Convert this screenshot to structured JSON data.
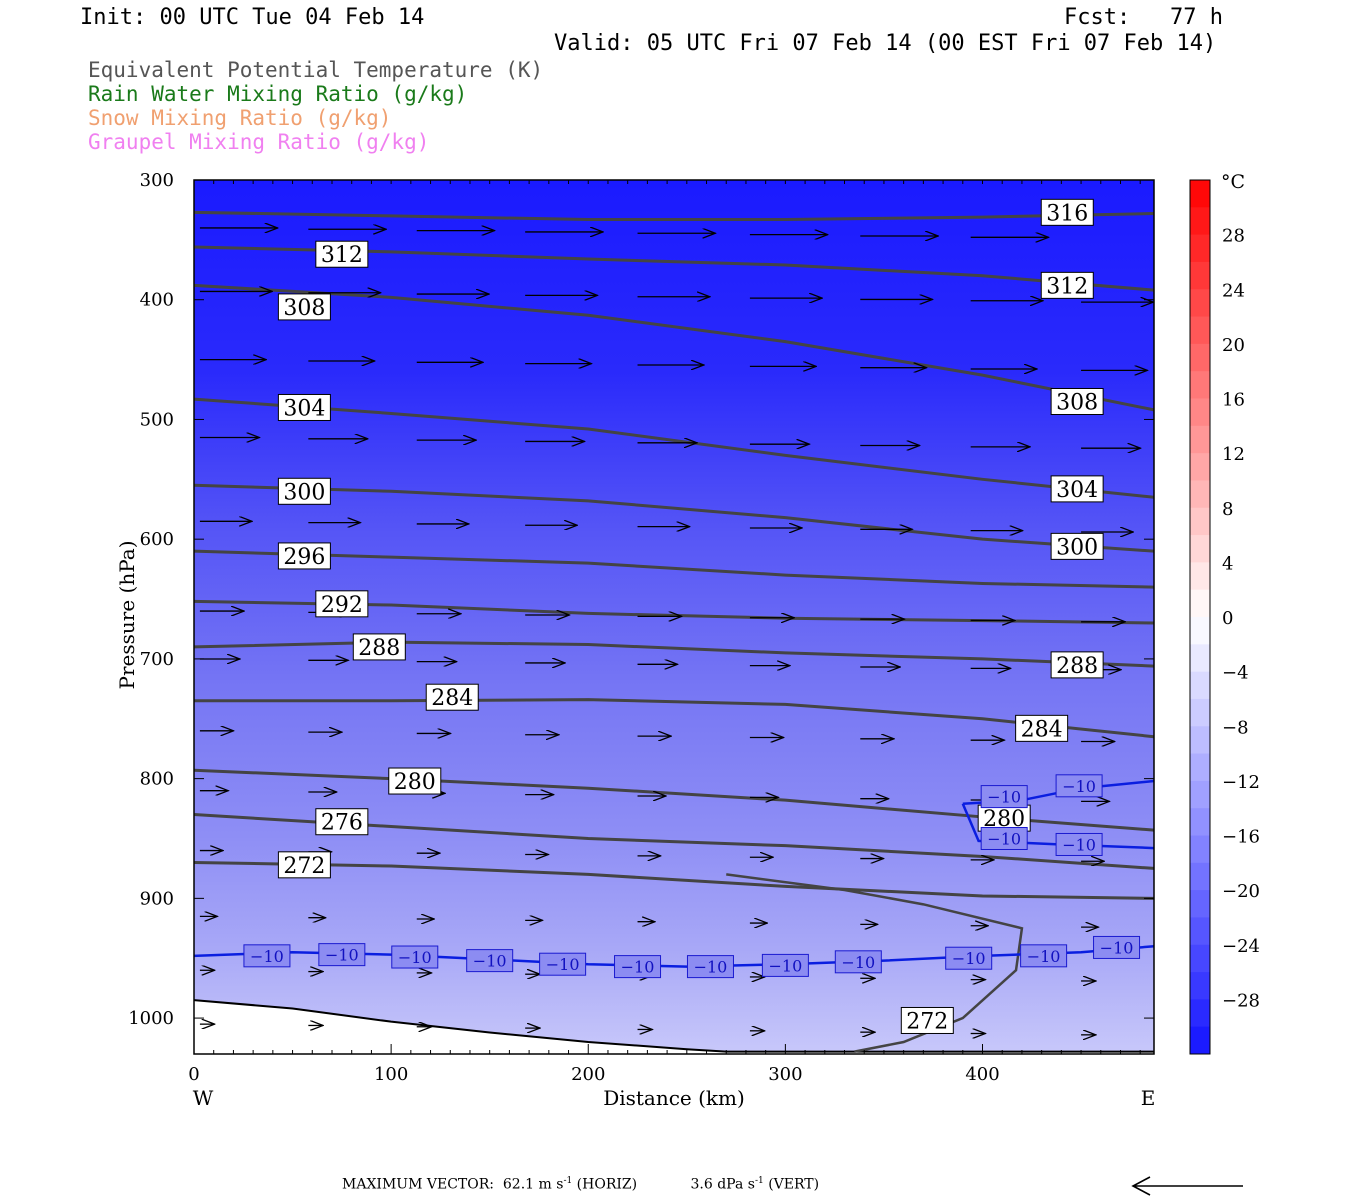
{
  "header": {
    "init": "Init: 00 UTC Tue 04 Feb 14",
    "fcst": "Fcst:   77 h",
    "valid": "Valid: 05 UTC Fri 07 Feb 14 (00 EST Fri 07 Feb 14)"
  },
  "legend": [
    {
      "label": "Equivalent Potential Temperature (K)",
      "color": "#555555"
    },
    {
      "label": "Rain Water Mixing Ratio (g/kg)",
      "color": "#1a7a1a"
    },
    {
      "label": "Snow Mixing Ratio (g/kg)",
      "color": "#f0a070"
    },
    {
      "label": "Graupel Mixing Ratio (g/kg)",
      "color": "#f080f0"
    }
  ],
  "footer": {
    "max_vector_label": "MAXIMUM VECTOR:",
    "horiz_value": "62.1 m s",
    "horiz_unit": "(HORIZ)",
    "vert_value": "3.6 dPa s",
    "vert_unit": "(VERT)",
    "exponent": "-1"
  },
  "chart_data": {
    "type": "cross-section",
    "xlabel": "Distance (km)",
    "ylabel": "Pressure (hPa)",
    "x_ticks": [
      0,
      100,
      200,
      300,
      400
    ],
    "y_ticks": [
      300,
      400,
      500,
      600,
      700,
      800,
      900,
      1000
    ],
    "xlim": [
      0,
      487
    ],
    "ylim": [
      300,
      1030
    ],
    "x_end_labels": {
      "west": "W",
      "east": "E"
    },
    "colorbar": {
      "unit": "°C",
      "tick_labels": [
        "28",
        "24",
        "20",
        "16",
        "12",
        "8",
        "4",
        "0",
        "−4",
        "−8",
        "−12",
        "−16",
        "−20",
        "−24",
        "−28"
      ],
      "tick_values": [
        28,
        24,
        20,
        16,
        12,
        8,
        4,
        0,
        -4,
        -8,
        -12,
        -16,
        -20,
        -24,
        -28
      ],
      "range": [
        -32,
        32
      ]
    },
    "theta_e_contours": [
      {
        "value": 316,
        "label": "316",
        "label_at": [
          443,
          327
        ],
        "points": [
          [
            0,
            327
          ],
          [
            100,
            330
          ],
          [
            200,
            333
          ],
          [
            300,
            333
          ],
          [
            400,
            331
          ],
          [
            487,
            328
          ]
        ]
      },
      {
        "value": 312,
        "label": "312",
        "label_at": [
          75,
          362
        ],
        "points": [
          [
            0,
            356
          ],
          [
            100,
            360
          ],
          [
            200,
            366
          ],
          [
            300,
            371
          ],
          [
            400,
            380
          ],
          [
            487,
            392
          ]
        ]
      },
      {
        "value": 312,
        "label": "312",
        "label_at": [
          443,
          388
        ],
        "points": []
      },
      {
        "value": 308,
        "label": "308",
        "label_at": [
          56,
          406
        ],
        "points": [
          [
            0,
            388
          ],
          [
            100,
            398
          ],
          [
            200,
            413
          ],
          [
            300,
            435
          ],
          [
            400,
            463
          ],
          [
            487,
            492
          ]
        ]
      },
      {
        "value": 308,
        "label": "308",
        "label_at": [
          448,
          485
        ],
        "points": []
      },
      {
        "value": 304,
        "label": "304",
        "label_at": [
          56,
          490
        ],
        "points": [
          [
            0,
            483
          ],
          [
            100,
            495
          ],
          [
            200,
            508
          ],
          [
            300,
            530
          ],
          [
            400,
            550
          ],
          [
            487,
            565
          ]
        ]
      },
      {
        "value": 304,
        "label": "304",
        "label_at": [
          448,
          558
        ],
        "points": []
      },
      {
        "value": 300,
        "label": "300",
        "label_at": [
          56,
          560
        ],
        "points": [
          [
            0,
            555
          ],
          [
            100,
            560
          ],
          [
            200,
            568
          ],
          [
            300,
            582
          ],
          [
            400,
            600
          ],
          [
            487,
            610
          ]
        ]
      },
      {
        "value": 300,
        "label": "300",
        "label_at": [
          448,
          606
        ],
        "points": []
      },
      {
        "value": 296,
        "label": "296",
        "label_at": [
          56,
          614
        ],
        "points": [
          [
            0,
            610
          ],
          [
            100,
            615
          ],
          [
            200,
            620
          ],
          [
            300,
            630
          ],
          [
            400,
            637
          ],
          [
            487,
            640
          ]
        ]
      },
      {
        "value": 292,
        "label": "292",
        "label_at": [
          75,
          654
        ],
        "points": [
          [
            0,
            652
          ],
          [
            100,
            655
          ],
          [
            200,
            662
          ],
          [
            300,
            666
          ],
          [
            400,
            668
          ],
          [
            487,
            670
          ]
        ]
      },
      {
        "value": 288,
        "label": "288",
        "label_at": [
          94,
          690
        ],
        "points": [
          [
            0,
            690
          ],
          [
            100,
            686
          ],
          [
            200,
            688
          ],
          [
            300,
            695
          ],
          [
            400,
            700
          ],
          [
            487,
            706
          ]
        ]
      },
      {
        "value": 288,
        "label": "288",
        "label_at": [
          448,
          705
        ],
        "points": []
      },
      {
        "value": 284,
        "label": "284",
        "label_at": [
          131,
          732
        ],
        "points": [
          [
            0,
            735
          ],
          [
            100,
            735
          ],
          [
            200,
            734
          ],
          [
            300,
            738
          ],
          [
            400,
            750
          ],
          [
            487,
            765
          ]
        ]
      },
      {
        "value": 284,
        "label": "284",
        "label_at": [
          430,
          758
        ],
        "points": []
      },
      {
        "value": 280,
        "label": "280",
        "label_at": [
          112,
          802
        ],
        "points": [
          [
            0,
            793
          ],
          [
            100,
            800
          ],
          [
            200,
            808
          ],
          [
            300,
            818
          ],
          [
            400,
            832
          ],
          [
            487,
            843
          ]
        ]
      },
      {
        "value": 280,
        "label": "280",
        "label_at": [
          411,
          833
        ],
        "points": []
      },
      {
        "value": 276,
        "label": "276",
        "label_at": [
          75,
          836
        ],
        "points": [
          [
            0,
            830
          ],
          [
            100,
            840
          ],
          [
            200,
            850
          ],
          [
            300,
            856
          ],
          [
            400,
            865
          ],
          [
            487,
            875
          ]
        ]
      },
      {
        "value": 272,
        "label": "272",
        "label_at": [
          56,
          872
        ],
        "points": [
          [
            0,
            870
          ],
          [
            100,
            873
          ],
          [
            200,
            880
          ],
          [
            300,
            890
          ],
          [
            400,
            898
          ],
          [
            487,
            900
          ]
        ]
      },
      {
        "value": 272,
        "label": "272",
        "label_at": [
          372,
          1002
        ],
        "points": []
      }
    ],
    "temperature_contours": [
      {
        "value": -10,
        "label": "−10",
        "points": [
          [
            0,
            948
          ],
          [
            50,
            945
          ],
          [
            100,
            947
          ],
          [
            150,
            951
          ],
          [
            200,
            955
          ],
          [
            250,
            957
          ],
          [
            300,
            955
          ],
          [
            350,
            952
          ],
          [
            400,
            948
          ],
          [
            450,
            945
          ],
          [
            487,
            940
          ]
        ]
      },
      {
        "value": -10,
        "label": "−10",
        "points": [
          [
            390,
            821
          ],
          [
            420,
            818
          ],
          [
            450,
            808
          ],
          [
            487,
            802
          ]
        ]
      },
      {
        "value": -10,
        "label": "−10",
        "points": [
          [
            390,
            821
          ],
          [
            398,
            852
          ],
          [
            440,
            855
          ],
          [
            487,
            858
          ]
        ]
      }
    ],
    "temperature_contour_labels": [
      {
        "label": "−10",
        "at": [
          37,
          948
        ]
      },
      {
        "label": "−10",
        "at": [
          75,
          947
        ]
      },
      {
        "label": "−10",
        "at": [
          112,
          949
        ]
      },
      {
        "label": "−10",
        "at": [
          150,
          952
        ]
      },
      {
        "label": "−10",
        "at": [
          187,
          955
        ]
      },
      {
        "label": "−10",
        "at": [
          225,
          957
        ]
      },
      {
        "label": "−10",
        "at": [
          262,
          957
        ]
      },
      {
        "label": "−10",
        "at": [
          300,
          956
        ]
      },
      {
        "label": "−10",
        "at": [
          337,
          953
        ]
      },
      {
        "label": "−10",
        "at": [
          393,
          950
        ]
      },
      {
        "label": "−10",
        "at": [
          431,
          948
        ]
      },
      {
        "label": "−10",
        "at": [
          468,
          941
        ]
      },
      {
        "label": "−10",
        "at": [
          411,
          815
        ]
      },
      {
        "label": "−10",
        "at": [
          449,
          806
        ]
      },
      {
        "label": "−10",
        "at": [
          411,
          850
        ]
      },
      {
        "label": "−10",
        "at": [
          449,
          855
        ]
      }
    ],
    "wind_vector_levels": [
      340,
      393,
      450,
      515,
      585,
      660,
      700,
      760,
      810,
      860,
      915,
      960,
      1005
    ]
  }
}
